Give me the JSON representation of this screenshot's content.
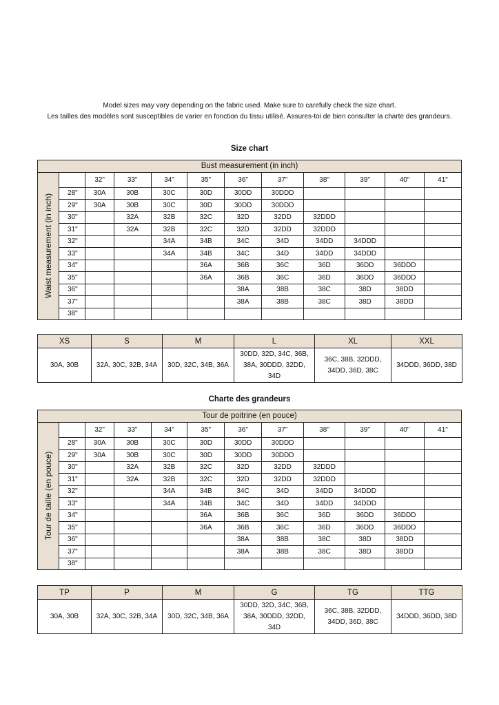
{
  "intro": {
    "line1": "Model sizes may vary depending on the fabric used. Make sure to carefully check the size chart.",
    "line2": "Les tailles des modèles sont susceptibles de varier en fonction du tissu utilisé. Assures-toi de bien consulter la charte des grandeurs."
  },
  "colors": {
    "header_bg": "#e9e0d3",
    "border": "#222222"
  },
  "charts": [
    {
      "title": "Size chart",
      "bust_label": "Bust measurement (in inch)",
      "waist_label": "Waist measurement (in inch)",
      "bust_sizes": [
        "32\"",
        "33\"",
        "34\"",
        "35\"",
        "36\"",
        "37\"",
        "38\"",
        "39\"",
        "40\"",
        "41\""
      ],
      "rows": [
        {
          "waist": "28\"",
          "cells": [
            "30A",
            "30B",
            "30C",
            "30D",
            "30DD",
            "30DDD",
            "",
            "",
            "",
            ""
          ]
        },
        {
          "waist": "29\"",
          "cells": [
            "30A",
            "30B",
            "30C",
            "30D",
            "30DD",
            "30DDD",
            "",
            "",
            "",
            ""
          ]
        },
        {
          "waist": "30\"",
          "cells": [
            "",
            "32A",
            "32B",
            "32C",
            "32D",
            "32DD",
            "32DDD",
            "",
            "",
            ""
          ]
        },
        {
          "waist": "31\"",
          "cells": [
            "",
            "32A",
            "32B",
            "32C",
            "32D",
            "32DD",
            "32DDD",
            "",
            "",
            ""
          ]
        },
        {
          "waist": "32\"",
          "cells": [
            "",
            "",
            "34A",
            "34B",
            "34C",
            "34D",
            "34DD",
            "34DDD",
            "",
            ""
          ]
        },
        {
          "waist": "33\"",
          "cells": [
            "",
            "",
            "34A",
            "34B",
            "34C",
            "34D",
            "34DD",
            "34DDD",
            "",
            ""
          ]
        },
        {
          "waist": "34\"",
          "cells": [
            "",
            "",
            "",
            "36A",
            "36B",
            "36C",
            "36D",
            "36DD",
            "36DDD",
            ""
          ]
        },
        {
          "waist": "35\"",
          "cells": [
            "",
            "",
            "",
            "36A",
            "36B",
            "36C",
            "36D",
            "36DD",
            "36DDD",
            ""
          ]
        },
        {
          "waist": "36\"",
          "cells": [
            "",
            "",
            "",
            "",
            "38A",
            "38B",
            "38C",
            "38D",
            "38DD",
            ""
          ]
        },
        {
          "waist": "37\"",
          "cells": [
            "",
            "",
            "",
            "",
            "38A",
            "38B",
            "38C",
            "38D",
            "38DD",
            ""
          ]
        },
        {
          "waist": "38\"",
          "cells": [
            "",
            "",
            "",
            "",
            "",
            "",
            "",
            "",
            "",
            ""
          ]
        }
      ],
      "size_groups": [
        {
          "size": "XS",
          "cups": "30A, 30B"
        },
        {
          "size": "S",
          "cups": "32A, 30C, 32B, 34A"
        },
        {
          "size": "M",
          "cups": "30D, 32C, 34B, 36A"
        },
        {
          "size": "L",
          "cups": "30DD, 32D, 34C, 36B, 38A, 30DDD, 32DD, 34D"
        },
        {
          "size": "XL",
          "cups": "36C, 38B, 32DDD, 34DD, 36D, 38C"
        },
        {
          "size": "XXL",
          "cups": "34DDD, 36DD, 38D"
        }
      ]
    },
    {
      "title": "Charte des grandeurs",
      "bust_label": "Tour de poitrine (en pouce)",
      "waist_label": "Tour de taille (en pouce)",
      "bust_sizes": [
        "32\"",
        "33\"",
        "34\"",
        "35\"",
        "36\"",
        "37\"",
        "38\"",
        "39\"",
        "40\"",
        "41\""
      ],
      "rows": [
        {
          "waist": "28\"",
          "cells": [
            "30A",
            "30B",
            "30C",
            "30D",
            "30DD",
            "30DDD",
            "",
            "",
            "",
            ""
          ]
        },
        {
          "waist": "29\"",
          "cells": [
            "30A",
            "30B",
            "30C",
            "30D",
            "30DD",
            "30DDD",
            "",
            "",
            "",
            ""
          ]
        },
        {
          "waist": "30\"",
          "cells": [
            "",
            "32A",
            "32B",
            "32C",
            "32D",
            "32DD",
            "32DDD",
            "",
            "",
            ""
          ]
        },
        {
          "waist": "31\"",
          "cells": [
            "",
            "32A",
            "32B",
            "32C",
            "32D",
            "32DD",
            "32DDD",
            "",
            "",
            ""
          ]
        },
        {
          "waist": "32\"",
          "cells": [
            "",
            "",
            "34A",
            "34B",
            "34C",
            "34D",
            "34DD",
            "34DDD",
            "",
            ""
          ]
        },
        {
          "waist": "33\"",
          "cells": [
            "",
            "",
            "34A",
            "34B",
            "34C",
            "34D",
            "34DD",
            "34DDD",
            "",
            ""
          ]
        },
        {
          "waist": "34\"",
          "cells": [
            "",
            "",
            "",
            "36A",
            "36B",
            "36C",
            "36D",
            "36DD",
            "36DDD",
            ""
          ]
        },
        {
          "waist": "35\"",
          "cells": [
            "",
            "",
            "",
            "36A",
            "36B",
            "36C",
            "36D",
            "36DD",
            "36DDD",
            ""
          ]
        },
        {
          "waist": "36\"",
          "cells": [
            "",
            "",
            "",
            "",
            "38A",
            "38B",
            "38C",
            "38D",
            "38DD",
            ""
          ]
        },
        {
          "waist": "37\"",
          "cells": [
            "",
            "",
            "",
            "",
            "38A",
            "38B",
            "38C",
            "38D",
            "38DD",
            ""
          ]
        },
        {
          "waist": "38\"",
          "cells": [
            "",
            "",
            "",
            "",
            "",
            "",
            "",
            "",
            "",
            ""
          ]
        }
      ],
      "size_groups": [
        {
          "size": "TP",
          "cups": "30A, 30B"
        },
        {
          "size": "P",
          "cups": "32A, 30C, 32B, 34A"
        },
        {
          "size": "M",
          "cups": "30D, 32C, 34B, 36A"
        },
        {
          "size": "G",
          "cups": "30DD, 32D, 34C, 36B, 38A, 30DDD, 32DD, 34D"
        },
        {
          "size": "TG",
          "cups": "36C, 38B, 32DDD, 34DD, 36D, 38C"
        },
        {
          "size": "TTG",
          "cups": "34DDD, 36DD, 38D"
        }
      ]
    }
  ]
}
